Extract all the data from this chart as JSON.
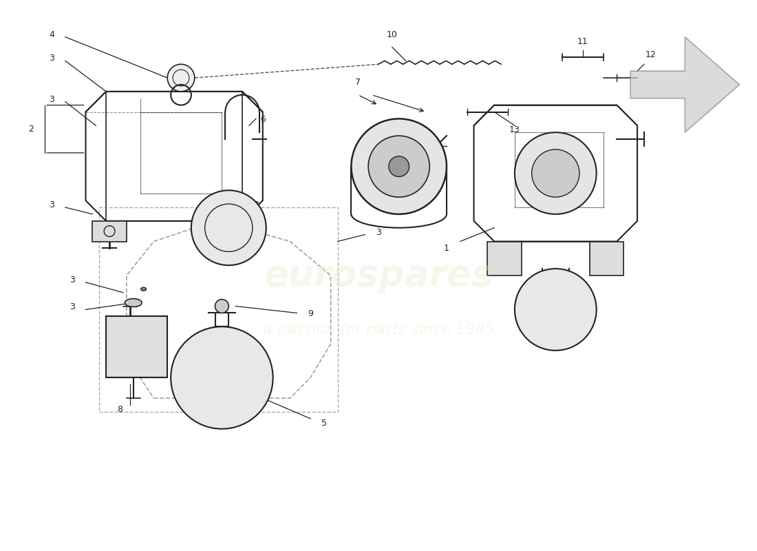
{
  "title": "",
  "background_color": "#ffffff",
  "watermark_text1": "a passion for parts since 1985",
  "watermark_text2": "eurospares",
  "line_color": "#222222",
  "dashed_color": "#555555",
  "label_color": "#222222",
  "parts": {
    "part1_label": "1",
    "part2_label": "2",
    "part3_label": "3",
    "part4_label": "4",
    "part5_label": "5",
    "part6_label": "6",
    "part7_label": "7",
    "part8_label": "8",
    "part9_label": "9",
    "part10_label": "10",
    "part11_label": "11",
    "part12_label": "12",
    "part13_label": "13"
  }
}
